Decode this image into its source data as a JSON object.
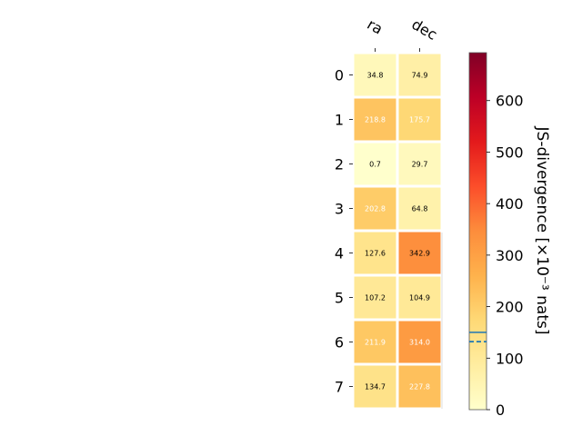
{
  "chart_data": {
    "type": "heatmap",
    "columns": [
      "ra",
      "dec"
    ],
    "rows": [
      "0",
      "1",
      "2",
      "3",
      "4",
      "5",
      "6",
      "7"
    ],
    "values": [
      [
        34.8,
        74.9
      ],
      [
        218.8,
        175.7
      ],
      [
        0.7,
        29.7
      ],
      [
        202.8,
        64.8
      ],
      [
        127.6,
        342.9
      ],
      [
        107.2,
        104.9
      ],
      [
        211.9,
        314.0
      ],
      [
        134.7,
        227.8
      ]
    ],
    "cell_labels": [
      [
        "34.8",
        "74.9"
      ],
      [
        "218.8",
        "175.7"
      ],
      [
        "0.7",
        "29.7"
      ],
      [
        "202.8",
        "64.8"
      ],
      [
        "127.6",
        "342.9"
      ],
      [
        "107.2",
        "104.9"
      ],
      [
        "211.9",
        "314.0"
      ],
      [
        "134.7",
        "227.8"
      ]
    ],
    "colorbar": {
      "label": "JS-divergence [×10⁻³ nats]",
      "range": [
        0,
        693
      ],
      "ticks": [
        "0",
        "100",
        "200",
        "300",
        "400",
        "500",
        "600"
      ],
      "tick_values": [
        0,
        100,
        200,
        300,
        400,
        500,
        600
      ],
      "colormap": "YlOrRd",
      "reference_solid": 150,
      "reference_dashed": 132
    },
    "colors": {
      "cell_border": "#ffffff",
      "reference_line": "#1f77b4",
      "text_dark": "#000000",
      "text_light": "#ffffff"
    }
  }
}
